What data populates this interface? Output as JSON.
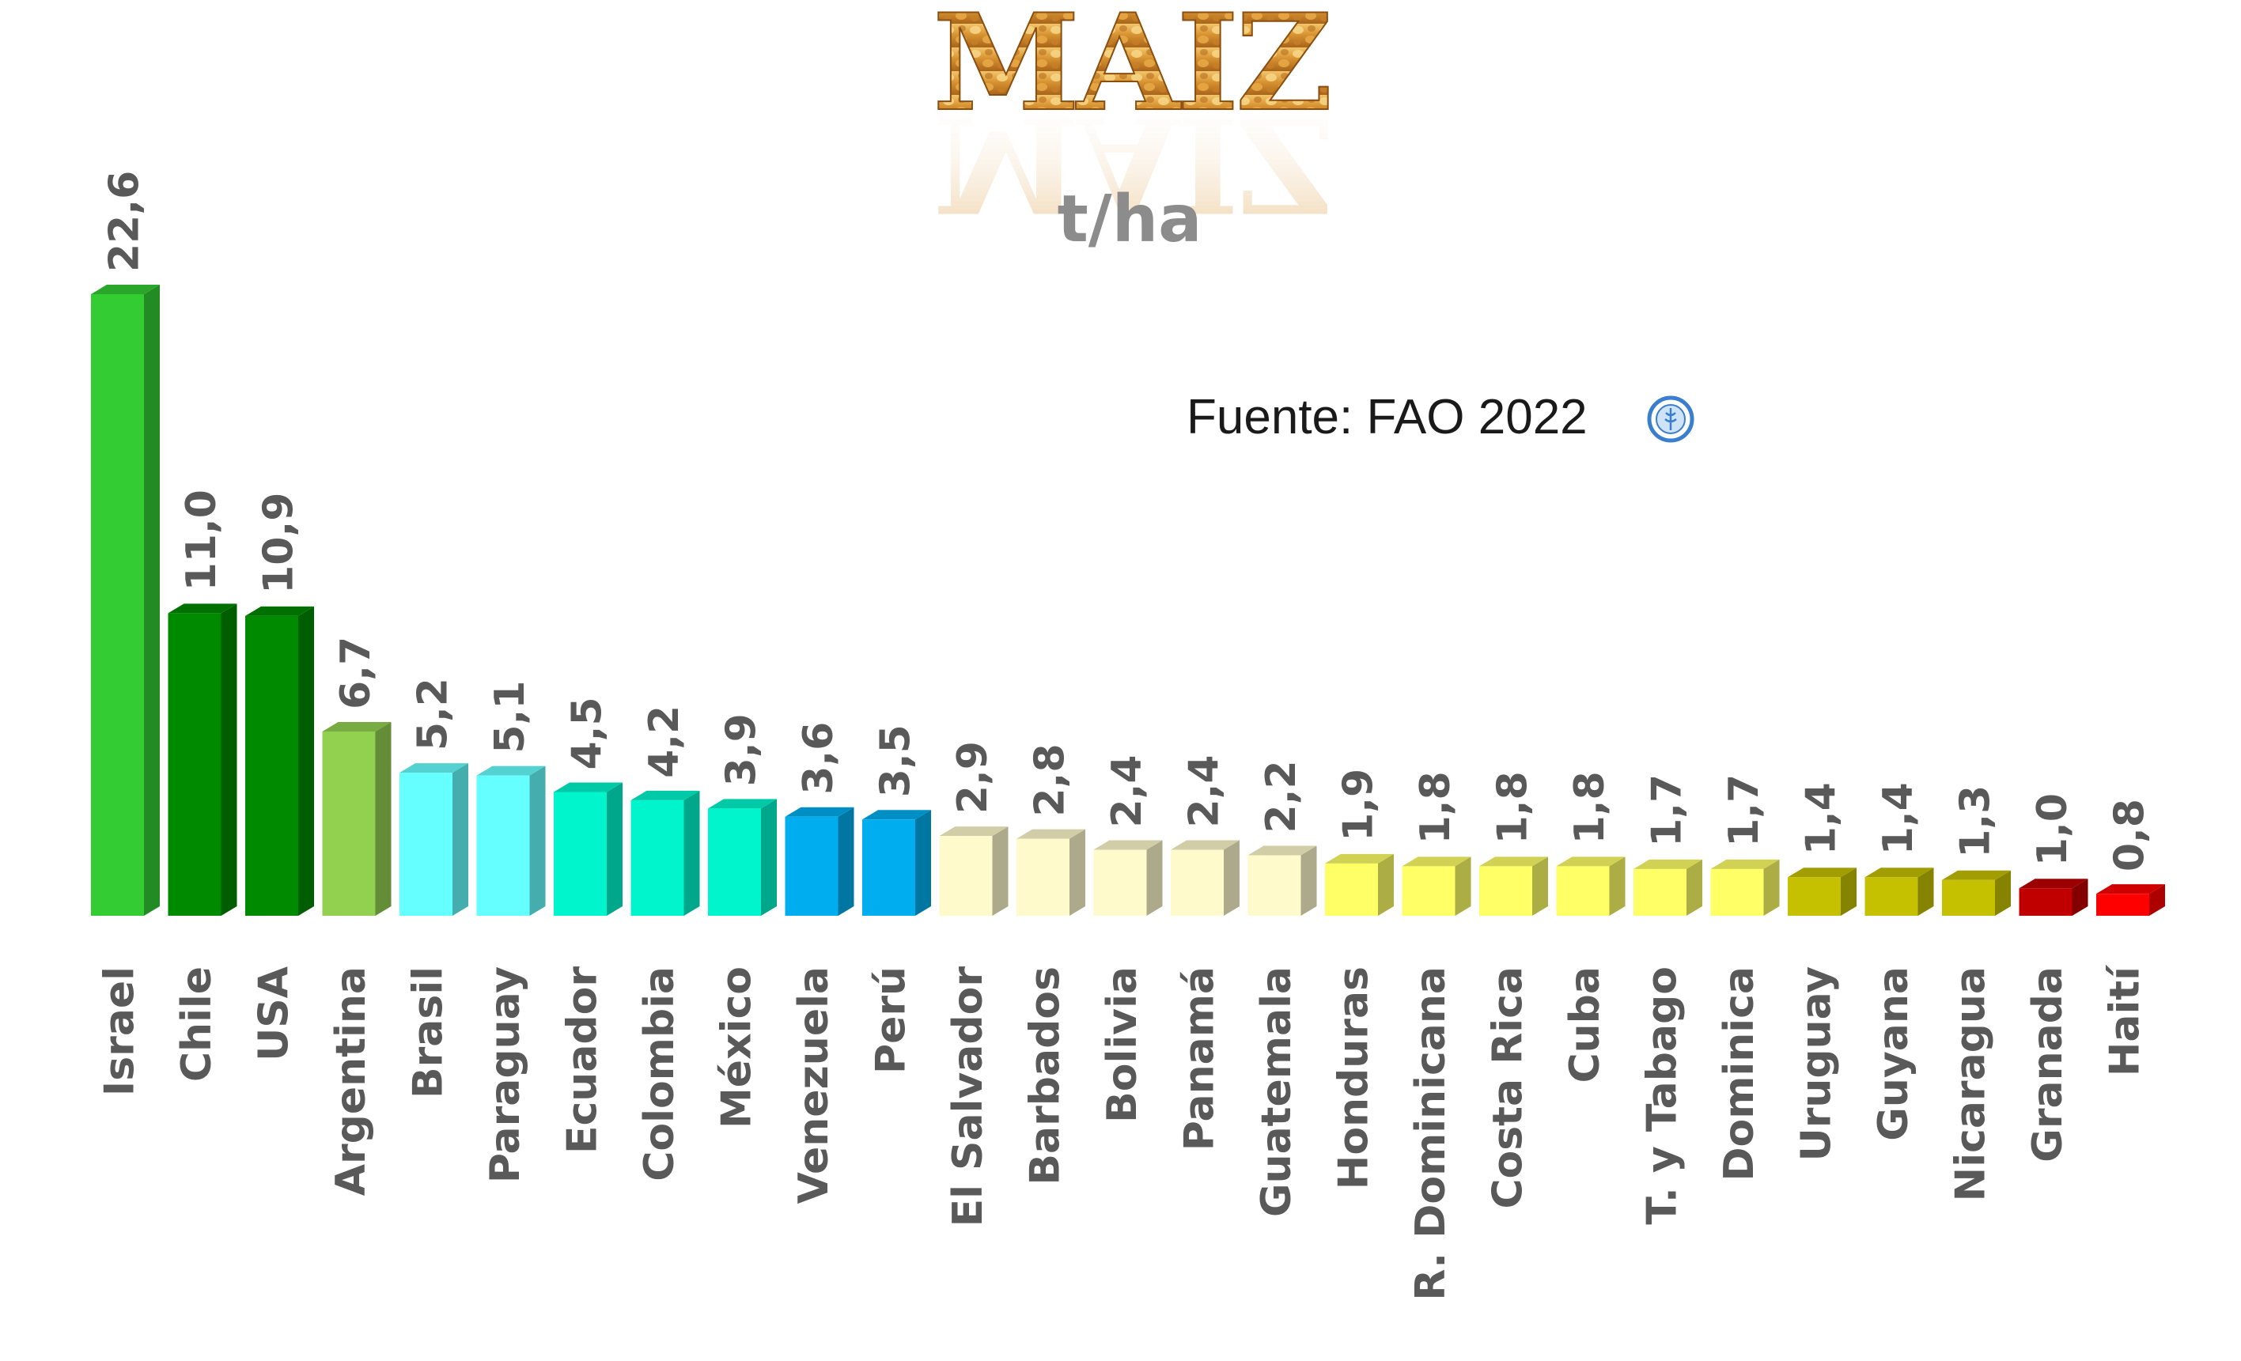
{
  "chart_data": {
    "type": "bar",
    "title": "MAIZ",
    "ylabel": "t/ha",
    "source": "Fuente: FAO 2022",
    "source_icon": "fao-logo-icon",
    "grid": false,
    "legend": "none",
    "ylim": [
      0,
      22.6
    ],
    "categories": [
      "Israel",
      "Chile",
      "USA",
      "Argentina",
      "Brasil",
      "Paraguay",
      "Ecuador",
      "Colombia",
      "México",
      "Venezuela",
      "Perú",
      "El Salvador",
      "Barbados",
      "Bolivia",
      "Panamá",
      "Guatemala",
      "Honduras",
      "R. Dominicana",
      "Costa Rica",
      "Cuba",
      "T. y Tabago",
      "Dominica",
      "Uruguay",
      "Guyana",
      "Nicaragua",
      "Granada",
      "Haití"
    ],
    "values": [
      22.6,
      11.0,
      10.9,
      6.7,
      5.2,
      5.1,
      4.5,
      4.2,
      3.9,
      3.6,
      3.5,
      2.9,
      2.8,
      2.4,
      2.4,
      2.2,
      1.9,
      1.8,
      1.8,
      1.8,
      1.7,
      1.7,
      1.4,
      1.4,
      1.3,
      1.0,
      0.8
    ],
    "value_labels": [
      "22,6",
      "11,0",
      "10,9",
      "6,7",
      "5,2",
      "5,1",
      "4,5",
      "4,2",
      "3,9",
      "3,6",
      "3,5",
      "2,9",
      "2,8",
      "2,4",
      "2,4",
      "2,2",
      "1,9",
      "1,8",
      "1,8",
      "1,8",
      "1,7",
      "1,7",
      "1,4",
      "1,4",
      "1,3",
      "1,0",
      "0,8"
    ],
    "bar_colors": [
      "#33cc33",
      "#008a00",
      "#008a00",
      "#92d050",
      "#66ffff",
      "#66ffff",
      "#00f5cc",
      "#00f5cc",
      "#00f5cc",
      "#00aeef",
      "#00aeef",
      "#fffacc",
      "#fffacc",
      "#fffacc",
      "#fffacc",
      "#fffacc",
      "#ffff66",
      "#ffff66",
      "#ffff66",
      "#ffff66",
      "#ffff66",
      "#ffff66",
      "#c5c000",
      "#c5c000",
      "#c5c000",
      "#c00000",
      "#ff0000"
    ],
    "text_color": "#595959",
    "title_color": "#c8841a",
    "unit_color": "#8c8c8c"
  }
}
